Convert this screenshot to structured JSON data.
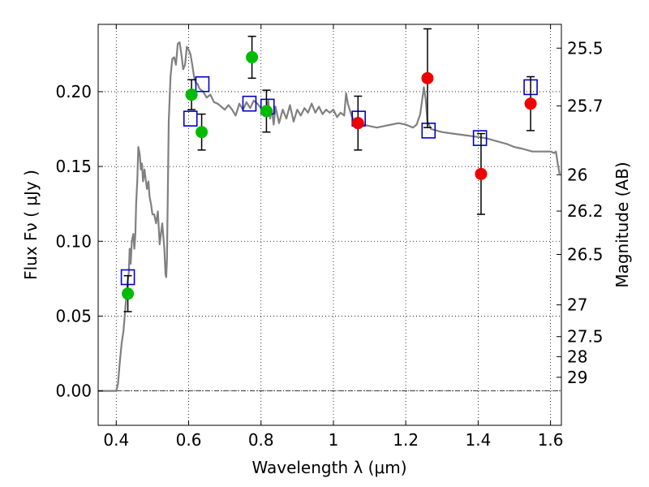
{
  "chart_data": {
    "type": "scatter",
    "xlabel": "Wavelength  λ (μm)",
    "ylabel": "Flux  Fν  ( μJy )",
    "ylabel_right": "Magnitude (AB)",
    "xlim": [
      0.35,
      1.63
    ],
    "ylim": [
      -0.023,
      0.245
    ],
    "x_ticks": [
      0.4,
      0.6,
      0.8,
      1.0,
      1.2,
      1.4,
      1.6
    ],
    "x_tick_labels": [
      "0.4",
      "0.6",
      "0.8",
      "1",
      "1.2",
      "1.4",
      "1.6"
    ],
    "y_ticks": [
      0.0,
      0.05,
      0.1,
      0.15,
      0.2
    ],
    "y_tick_labels": [
      "0.00",
      "0.05",
      "0.10",
      "0.15",
      "0.20"
    ],
    "right_ticks": [
      {
        "flux": 0.2291,
        "label": "25.5"
      },
      {
        "flux": 0.1905,
        "label": "25.7"
      },
      {
        "flux": 0.1445,
        "label": "26"
      },
      {
        "flux": 0.1202,
        "label": "26.2"
      },
      {
        "flux": 0.0912,
        "label": "26.5"
      },
      {
        "flux": 0.0575,
        "label": "27"
      },
      {
        "flux": 0.0363,
        "label": "27.5"
      },
      {
        "flux": 0.0229,
        "label": "28"
      },
      {
        "flux": 0.0091,
        "label": "29"
      }
    ],
    "grid": true,
    "zero_line": true,
    "series": [
      {
        "kind": "line",
        "color": "#808080",
        "points": [
          [
            0.35,
            0.0
          ],
          [
            0.4,
            0.0
          ],
          [
            0.405,
            0.005
          ],
          [
            0.41,
            0.02
          ],
          [
            0.415,
            0.032
          ],
          [
            0.42,
            0.04
          ],
          [
            0.425,
            0.055
          ],
          [
            0.43,
            0.07
          ],
          [
            0.435,
            0.08
          ],
          [
            0.437,
            0.095
          ],
          [
            0.44,
            0.085
          ],
          [
            0.443,
            0.1
          ],
          [
            0.447,
            0.105
          ],
          [
            0.45,
            0.095
          ],
          [
            0.453,
            0.105
          ],
          [
            0.455,
            0.125
          ],
          [
            0.458,
            0.14
          ],
          [
            0.461,
            0.163
          ],
          [
            0.465,
            0.158
          ],
          [
            0.468,
            0.148
          ],
          [
            0.471,
            0.152
          ],
          [
            0.474,
            0.14
          ],
          [
            0.478,
            0.148
          ],
          [
            0.481,
            0.142
          ],
          [
            0.485,
            0.135
          ],
          [
            0.489,
            0.14
          ],
          [
            0.492,
            0.13
          ],
          [
            0.496,
            0.125
          ],
          [
            0.5,
            0.118
          ],
          [
            0.505,
            0.118
          ],
          [
            0.51,
            0.112
          ],
          [
            0.515,
            0.12
          ],
          [
            0.52,
            0.098
          ],
          [
            0.527,
            0.112
          ],
          [
            0.533,
            0.095
          ],
          [
            0.536,
            0.078
          ],
          [
            0.538,
            0.076
          ],
          [
            0.54,
            0.088
          ],
          [
            0.545,
            0.18
          ],
          [
            0.55,
            0.21
          ],
          [
            0.555,
            0.222
          ],
          [
            0.56,
            0.223
          ],
          [
            0.565,
            0.218
          ],
          [
            0.57,
            0.232
          ],
          [
            0.575,
            0.233
          ],
          [
            0.58,
            0.225
          ],
          [
            0.585,
            0.215
          ],
          [
            0.59,
            0.218
          ],
          [
            0.595,
            0.23
          ],
          [
            0.6,
            0.228
          ],
          [
            0.605,
            0.225
          ],
          [
            0.61,
            0.218
          ],
          [
            0.615,
            0.21
          ],
          [
            0.62,
            0.206
          ],
          [
            0.625,
            0.205
          ],
          [
            0.63,
            0.202
          ],
          [
            0.64,
            0.2
          ],
          [
            0.65,
            0.196
          ],
          [
            0.66,
            0.198
          ],
          [
            0.67,
            0.193
          ],
          [
            0.68,
            0.192
          ],
          [
            0.69,
            0.19
          ],
          [
            0.7,
            0.188
          ],
          [
            0.71,
            0.191
          ],
          [
            0.72,
            0.188
          ],
          [
            0.73,
            0.184
          ],
          [
            0.74,
            0.192
          ],
          [
            0.75,
            0.188
          ],
          [
            0.76,
            0.193
          ],
          [
            0.77,
            0.189
          ],
          [
            0.78,
            0.194
          ],
          [
            0.79,
            0.192
          ],
          [
            0.8,
            0.189
          ],
          [
            0.81,
            0.184
          ],
          [
            0.82,
            0.194
          ],
          [
            0.825,
            0.182
          ],
          [
            0.83,
            0.188
          ],
          [
            0.835,
            0.178
          ],
          [
            0.84,
            0.19
          ],
          [
            0.85,
            0.179
          ],
          [
            0.86,
            0.188
          ],
          [
            0.87,
            0.182
          ],
          [
            0.88,
            0.191
          ],
          [
            0.89,
            0.18
          ],
          [
            0.9,
            0.188
          ],
          [
            0.91,
            0.184
          ],
          [
            0.92,
            0.189
          ],
          [
            0.93,
            0.186
          ],
          [
            0.94,
            0.192
          ],
          [
            0.95,
            0.186
          ],
          [
            0.96,
            0.19
          ],
          [
            0.97,
            0.185
          ],
          [
            0.98,
            0.188
          ],
          [
            0.99,
            0.186
          ],
          [
            1.0,
            0.188
          ],
          [
            1.01,
            0.183
          ],
          [
            1.02,
            0.186
          ],
          [
            1.03,
            0.184
          ],
          [
            1.035,
            0.199
          ],
          [
            1.04,
            0.192
          ],
          [
            1.05,
            0.184
          ],
          [
            1.06,
            0.18
          ],
          [
            1.08,
            0.178
          ],
          [
            1.1,
            0.177
          ],
          [
            1.12,
            0.176
          ],
          [
            1.14,
            0.177
          ],
          [
            1.16,
            0.178
          ],
          [
            1.18,
            0.179
          ],
          [
            1.2,
            0.178
          ],
          [
            1.22,
            0.176
          ],
          [
            1.23,
            0.178
          ],
          [
            1.24,
            0.185
          ],
          [
            1.25,
            0.203
          ],
          [
            1.255,
            0.195
          ],
          [
            1.26,
            0.18
          ],
          [
            1.27,
            0.175
          ],
          [
            1.3,
            0.173
          ],
          [
            1.33,
            0.172
          ],
          [
            1.36,
            0.171
          ],
          [
            1.39,
            0.17
          ],
          [
            1.42,
            0.169
          ],
          [
            1.45,
            0.167
          ],
          [
            1.48,
            0.165
          ],
          [
            1.5,
            0.163
          ],
          [
            1.52,
            0.162
          ],
          [
            1.55,
            0.16
          ],
          [
            1.58,
            0.16
          ],
          [
            1.6,
            0.16
          ],
          [
            1.61,
            0.159
          ],
          [
            1.615,
            0.16
          ],
          [
            1.62,
            0.152
          ],
          [
            1.625,
            0.145
          ]
        ]
      },
      {
        "kind": "squares",
        "color": "#0000cc",
        "points": [
          [
            0.432,
            0.076
          ],
          [
            0.605,
            0.182
          ],
          [
            0.638,
            0.205
          ],
          [
            0.768,
            0.192
          ],
          [
            0.818,
            0.19
          ],
          [
            1.07,
            0.182
          ],
          [
            1.263,
            0.174
          ],
          [
            1.405,
            0.169
          ],
          [
            1.545,
            0.203
          ]
        ]
      },
      {
        "kind": "circles",
        "color": "#00bb00",
        "points": [
          {
            "x": 0.432,
            "y": 0.065,
            "err": 0.012
          },
          {
            "x": 0.608,
            "y": 0.198,
            "err": 0.01
          },
          {
            "x": 0.636,
            "y": 0.173,
            "err": 0.012
          },
          {
            "x": 0.775,
            "y": 0.223,
            "err": 0.014
          },
          {
            "x": 0.815,
            "y": 0.187,
            "err": 0.014
          }
        ]
      },
      {
        "kind": "circles",
        "color": "#ee0000",
        "points": [
          {
            "x": 1.068,
            "y": 0.179,
            "err": 0.018
          },
          {
            "x": 1.26,
            "y": 0.209,
            "err": 0.033
          },
          {
            "x": 1.408,
            "y": 0.145,
            "err": 0.027
          },
          {
            "x": 1.545,
            "y": 0.192,
            "err": 0.018
          }
        ]
      }
    ]
  }
}
